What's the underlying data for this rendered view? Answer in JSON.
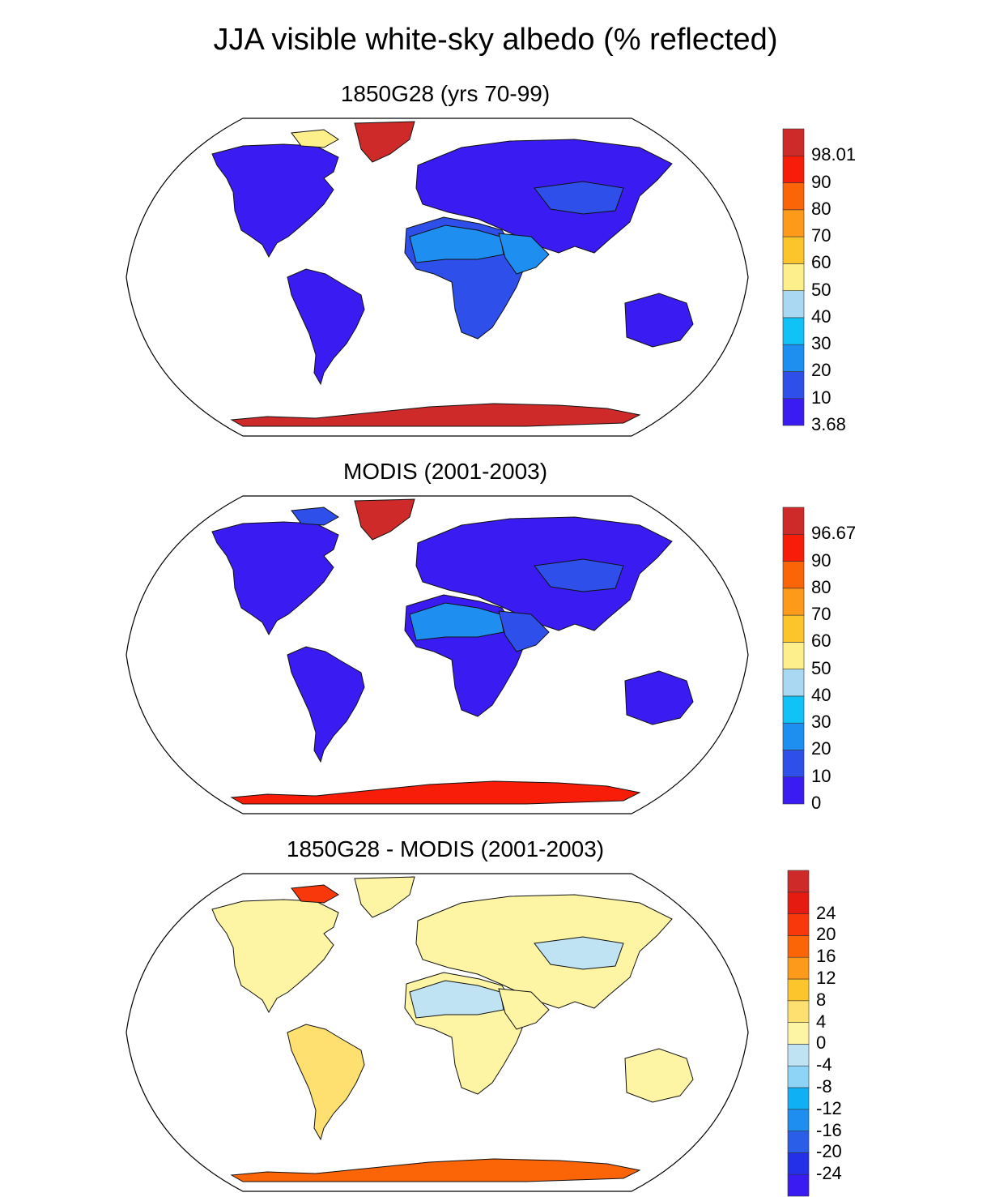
{
  "figure": {
    "title": "JJA visible white-sky albedo (% reflected)"
  },
  "panels": [
    {
      "id": "model",
      "title": "1850G28 (yrs 70-99)",
      "colorbar": {
        "colors": [
          "#3a1cf2",
          "#2e4fea",
          "#1e8ef0",
          "#10c2f5",
          "#a9d8f2",
          "#fdf08a",
          "#fcc52c",
          "#fd9a1a",
          "#fc6408",
          "#f81d08",
          "#cf2a2a"
        ],
        "labels": [
          "3.68",
          "10",
          "20",
          "30",
          "40",
          "50",
          "60",
          "70",
          "80",
          "90",
          "98.01"
        ]
      },
      "fills": {
        "north_america": "#3a1cf2",
        "south_america": "#3a1cf2",
        "africa": "#2e4fea",
        "sahara": "#1e8ef0",
        "eurasia": "#3a1cf2",
        "arabia": "#1e8ef0",
        "australia": "#3a1cf2",
        "greenland": "#cf2a2a",
        "antarctica": "#cf2a2a",
        "central_asia": "#2e4fea",
        "arctic_islands": "#fdf08a"
      }
    },
    {
      "id": "obs",
      "title": "MODIS (2001-2003)",
      "colorbar": {
        "colors": [
          "#3a1cf2",
          "#2e4fea",
          "#1e8ef0",
          "#10c2f5",
          "#a9d8f2",
          "#fdf08a",
          "#fcc52c",
          "#fd9a1a",
          "#fc6408",
          "#f81d08",
          "#cf2a2a"
        ],
        "labels": [
          "0",
          "10",
          "20",
          "30",
          "40",
          "50",
          "60",
          "70",
          "80",
          "90",
          "96.67"
        ]
      },
      "fills": {
        "north_america": "#3a1cf2",
        "south_america": "#3a1cf2",
        "africa": "#3a1cf2",
        "sahara": "#1e8ef0",
        "eurasia": "#3a1cf2",
        "arabia": "#2e4fea",
        "australia": "#3a1cf2",
        "greenland": "#cf2a2a",
        "antarctica": "#f81d08",
        "central_asia": "#2e4fea",
        "arctic_islands": "#2e4fea"
      }
    },
    {
      "id": "diff",
      "title": "1850G28 - MODIS (2001-2003)",
      "colorbar": {
        "colors": [
          "#3a1cf2",
          "#2330e8",
          "#2b5ee8",
          "#1e8ef0",
          "#10b0f5",
          "#8dd4f7",
          "#bfe3f3",
          "#fdf5a4",
          "#fde070",
          "#fcc52c",
          "#fd9a1a",
          "#fc6408",
          "#f8380a",
          "#e51a10",
          "#cf2a2a"
        ],
        "labels": [
          "-24",
          "-20",
          "-16",
          "-12",
          "-8",
          "-4",
          "0",
          "4",
          "8",
          "12",
          "16",
          "20",
          "24"
        ]
      },
      "fills": {
        "north_america": "#fdf5a4",
        "south_america": "#fde070",
        "africa": "#fdf5a4",
        "sahara": "#bfe3f3",
        "eurasia": "#fdf5a4",
        "arabia": "#fdf5a4",
        "australia": "#fdf5a4",
        "greenland": "#fdf5a4",
        "antarctica": "#fc6408",
        "central_asia": "#bfe3f3",
        "arctic_islands": "#f8380a"
      }
    }
  ]
}
